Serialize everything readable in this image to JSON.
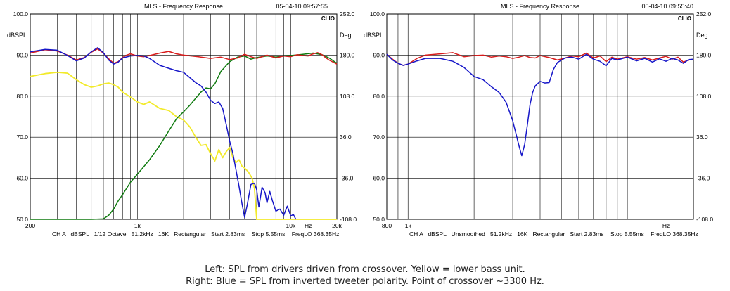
{
  "caption": {
    "line1": "Left: SPL from drivers driven from crossover. Yellow = lower bass unit.",
    "line2": "Right: Blue = SPL from inverted tweeter polarity. Point of crossover ~3300 Hz."
  },
  "colors": {
    "red": "#d81b1b",
    "blue": "#1616c8",
    "green": "#0e7a0e",
    "yellow": "#f2ea2a"
  },
  "chart_data": [
    {
      "type": "line",
      "title": "MLS - Frequency Response",
      "timestamp": "05-04-10 09:57:55",
      "brand": "CLIO",
      "xscale": "log",
      "xlim": [
        200,
        20000
      ],
      "ylim": [
        50,
        100
      ],
      "ylabel": "dBSPL",
      "y2label": "Deg",
      "y2lim": [
        -108,
        252
      ],
      "grid": true,
      "y_ticks": [
        "50.0",
        "60.0",
        "70.0",
        "80.0",
        "90.0",
        "100.0"
      ],
      "y2_ticks": [
        "-108.0",
        "-36.0",
        "36.0",
        "108.0",
        "180.0",
        "252.0"
      ],
      "x_tick_labels": [
        {
          "x": 200,
          "label": "200"
        },
        {
          "x": 1000,
          "label": "1k"
        },
        {
          "x": 10000,
          "label": "10k"
        },
        {
          "x": 13000,
          "label": "Hz"
        },
        {
          "x": 20000,
          "label": "20k"
        }
      ],
      "x_grid": [
        300,
        400,
        500,
        600,
        700,
        800,
        900,
        1000,
        2000,
        3000,
        4000,
        5000,
        6000,
        7000,
        8000,
        9000,
        10000,
        20000
      ],
      "footer": "CH A   dBSPL   1/12 Octave   51.2kHz   16K   Rectangular   Start 2.83ms    Stop 5.55ms    FreqLO 368.35Hz",
      "series": [
        {
          "color": "red",
          "x": [
            200,
            250,
            300,
            350,
            400,
            450,
            500,
            550,
            600,
            650,
            700,
            750,
            800,
            850,
            900,
            1000,
            1100,
            1200,
            1400,
            1600,
            1800,
            2000,
            2500,
            3000,
            3500,
            4000,
            4500,
            5000,
            5500,
            6000,
            7000,
            8000,
            9000,
            10000,
            11000,
            12000,
            13000,
            14000,
            15000,
            16000,
            17000,
            18000,
            20000
          ],
          "y": [
            90.5,
            91.3,
            91.0,
            90.0,
            88.8,
            89.4,
            90.7,
            91.5,
            90.5,
            89.1,
            88.0,
            88.4,
            89.4,
            90.0,
            90.3,
            89.8,
            89.6,
            89.9,
            90.5,
            90.9,
            90.3,
            90.0,
            89.6,
            89.2,
            89.5,
            88.9,
            89.3,
            90.2,
            89.6,
            89.2,
            90.0,
            89.3,
            89.8,
            89.6,
            90.1,
            89.9,
            89.8,
            90.3,
            90.6,
            90.1,
            89.3,
            88.7,
            87.8
          ]
        },
        {
          "color": "blue",
          "x": [
            200,
            250,
            300,
            350,
            400,
            450,
            500,
            550,
            600,
            650,
            700,
            750,
            800,
            900,
            1000,
            1100,
            1200,
            1400,
            1600,
            1800,
            2000,
            2200,
            2400,
            2600,
            2800,
            3000,
            3200,
            3400,
            3600,
            3800,
            4000,
            4200,
            4400,
            4600,
            4800,
            5000,
            5200,
            5500,
            5800,
            6000,
            6200,
            6500,
            6800,
            7000,
            7300,
            7600,
            8000,
            8500,
            9000,
            9500,
            10000,
            10400,
            10800
          ],
          "y": [
            90.8,
            91.4,
            91.2,
            89.9,
            88.6,
            89.3,
            90.8,
            91.8,
            90.6,
            88.8,
            87.8,
            88.3,
            89.3,
            89.8,
            89.9,
            89.8,
            89.2,
            87.5,
            86.8,
            86.2,
            85.8,
            84.5,
            83.3,
            82.5,
            81.0,
            79.0,
            78.2,
            78.6,
            77.0,
            73.0,
            69.0,
            66.0,
            62.0,
            58.0,
            54.0,
            50.5,
            53.5,
            58.5,
            58.8,
            57.2,
            53.0,
            57.8,
            56.5,
            54.0,
            56.8,
            54.5,
            52.0,
            52.5,
            51.0,
            53.2,
            50.8,
            51.2,
            50.0
          ]
        },
        {
          "color": "green",
          "x": [
            200,
            500,
            600,
            650,
            700,
            750,
            800,
            900,
            1000,
            1200,
            1400,
            1600,
            1800,
            2000,
            2200,
            2400,
            2600,
            2800,
            3000,
            3200,
            3500,
            4000,
            4500,
            5000,
            5500,
            6000,
            7000,
            8000,
            9000,
            10000,
            12000,
            14000,
            16000,
            18000,
            20000
          ],
          "y": [
            50.0,
            50.0,
            50.1,
            51.0,
            52.5,
            54.5,
            56.0,
            59.0,
            61.0,
            64.5,
            68.0,
            71.5,
            74.5,
            76.2,
            77.8,
            79.5,
            81.0,
            82.0,
            81.8,
            83.0,
            86.0,
            88.4,
            89.5,
            89.8,
            89.0,
            89.4,
            89.8,
            89.5,
            89.8,
            89.9,
            90.2,
            90.5,
            90.1,
            89.2,
            88.0
          ]
        },
        {
          "color": "yellow",
          "x": [
            200,
            250,
            300,
            350,
            400,
            450,
            500,
            550,
            600,
            650,
            700,
            750,
            800,
            900,
            1000,
            1100,
            1200,
            1400,
            1600,
            1800,
            2000,
            2200,
            2400,
            2600,
            2800,
            3000,
            3200,
            3400,
            3600,
            3800,
            4000,
            4200,
            4400,
            4600,
            4800,
            5000,
            5300,
            5600,
            5800,
            6000,
            20000
          ],
          "y": [
            84.8,
            85.5,
            85.8,
            85.6,
            84.0,
            82.8,
            82.2,
            82.5,
            83.0,
            83.2,
            82.8,
            82.2,
            81.0,
            79.8,
            78.6,
            78.0,
            78.6,
            77.0,
            76.5,
            75.0,
            74.2,
            72.5,
            70.0,
            68.0,
            68.2,
            66.0,
            64.2,
            67.0,
            65.0,
            66.5,
            67.5,
            65.0,
            63.8,
            64.5,
            63.0,
            62.5,
            61.5,
            60.0,
            57.5,
            50.0,
            50.0
          ]
        }
      ]
    },
    {
      "type": "line",
      "title": "MLS - Frequency Response",
      "timestamp": "05-04-10 09:55:40",
      "brand": "CLIO",
      "xscale": "log",
      "xlim": [
        800,
        20000
      ],
      "ylim": [
        50,
        100
      ],
      "ylabel": "dBSPL",
      "y2label": "Deg",
      "y2lim": [
        -108,
        252
      ],
      "grid": true,
      "y_ticks": [
        "50.0",
        "60.0",
        "70.0",
        "80.0",
        "90.0",
        "100.0"
      ],
      "y2_ticks": [
        "-108.0",
        "-36.0",
        "36.0",
        "108.0",
        "180.0",
        "252.0"
      ],
      "x_tick_labels": [
        {
          "x": 800,
          "label": "800"
        },
        {
          "x": 1000,
          "label": "1k"
        },
        {
          "x": 15000,
          "label": "Hz"
        }
      ],
      "x_grid": [
        900,
        1000,
        2000,
        3000,
        4000,
        5000,
        6000,
        7000,
        8000,
        9000,
        10000,
        20000
      ],
      "footer": "CH A   dBSPL   Unsmoothed   51.2kHz   16K   Rectangular   Start 2.83ms    Stop 5.55ms    FreqLO 368.35Hz",
      "series": [
        {
          "color": "red",
          "x": [
            800,
            850,
            900,
            950,
            1000,
            1100,
            1200,
            1400,
            1600,
            1800,
            2000,
            2200,
            2400,
            2600,
            2800,
            3000,
            3200,
            3400,
            3600,
            3800,
            4000,
            4400,
            4800,
            5200,
            5600,
            6000,
            6500,
            7000,
            7500,
            8000,
            8500,
            9000,
            10000,
            11000,
            12000,
            13000,
            14000,
            15000,
            16000,
            17000,
            18000,
            19000,
            20000
          ],
          "y": [
            90.2,
            89.0,
            88.0,
            87.5,
            87.8,
            89.2,
            90.0,
            90.3,
            90.6,
            89.6,
            89.9,
            90.0,
            89.5,
            89.8,
            89.6,
            89.2,
            89.5,
            89.9,
            89.4,
            89.3,
            89.9,
            89.4,
            88.8,
            89.3,
            89.8,
            89.6,
            90.5,
            89.3,
            89.8,
            88.4,
            89.5,
            89.0,
            89.6,
            89.0,
            89.4,
            88.8,
            89.3,
            89.7,
            89.0,
            89.5,
            88.3,
            88.8,
            89.0
          ]
        },
        {
          "color": "blue",
          "x": [
            800,
            850,
            900,
            950,
            1000,
            1100,
            1200,
            1400,
            1600,
            1800,
            2000,
            2200,
            2400,
            2600,
            2800,
            3000,
            3100,
            3200,
            3300,
            3400,
            3500,
            3600,
            3700,
            3800,
            4000,
            4200,
            4400,
            4600,
            4800,
            5200,
            5600,
            6000,
            6500,
            7000,
            7500,
            8000,
            8500,
            9000,
            10000,
            11000,
            12000,
            13000,
            14000,
            15000,
            16000,
            17000,
            18000,
            19000,
            20000
          ],
          "y": [
            90.2,
            88.8,
            88.0,
            87.5,
            87.8,
            88.6,
            89.2,
            89.2,
            88.5,
            87.0,
            84.8,
            84.0,
            82.3,
            80.9,
            78.5,
            74.0,
            71.0,
            68.0,
            65.5,
            68.2,
            73.0,
            78.0,
            80.9,
            82.5,
            83.6,
            83.2,
            83.3,
            86.5,
            88.2,
            89.3,
            89.5,
            89.0,
            90.2,
            89.0,
            88.5,
            87.4,
            89.2,
            88.8,
            89.5,
            88.6,
            89.2,
            88.3,
            89.1,
            88.5,
            89.2,
            88.8,
            88.0,
            88.9,
            89.0
          ]
        }
      ]
    }
  ]
}
